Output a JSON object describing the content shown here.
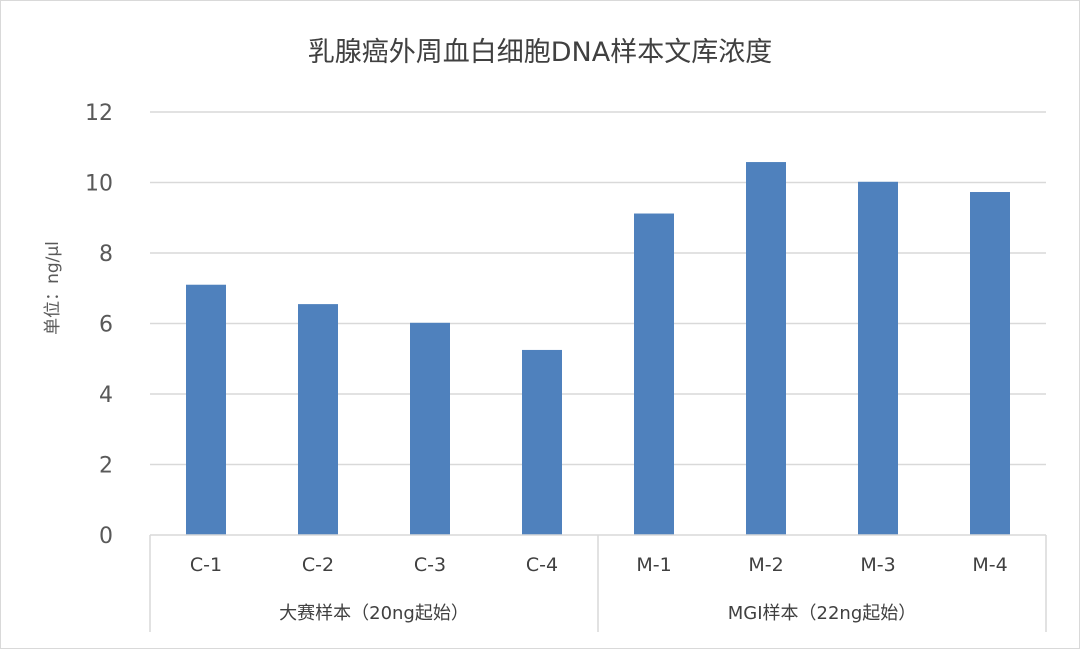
{
  "chart_data": {
    "type": "bar",
    "title": "乳腺癌外周血白细胞DNA样本文库浓度",
    "ylabel": "单位：ng/µl",
    "categories": [
      "C-1",
      "C-2",
      "C-3",
      "C-4",
      "M-1",
      "M-2",
      "M-3",
      "M-4"
    ],
    "groups": [
      {
        "label": "大赛样本（20ng起始）",
        "categories": [
          "C-1",
          "C-2",
          "C-3",
          "C-4"
        ]
      },
      {
        "label": "MGI样本（22ng起始）",
        "categories": [
          "M-1",
          "M-2",
          "M-3",
          "M-4"
        ]
      }
    ],
    "values": [
      7.1,
      6.55,
      6.02,
      5.25,
      9.12,
      10.58,
      10.02,
      9.73
    ],
    "ylim": [
      0,
      12
    ],
    "yticks": [
      0,
      2,
      4,
      6,
      8,
      10,
      12
    ],
    "grid": true,
    "legend": "none",
    "bar_color": "#4f81bd",
    "grid_color": "#d9d9d9"
  }
}
